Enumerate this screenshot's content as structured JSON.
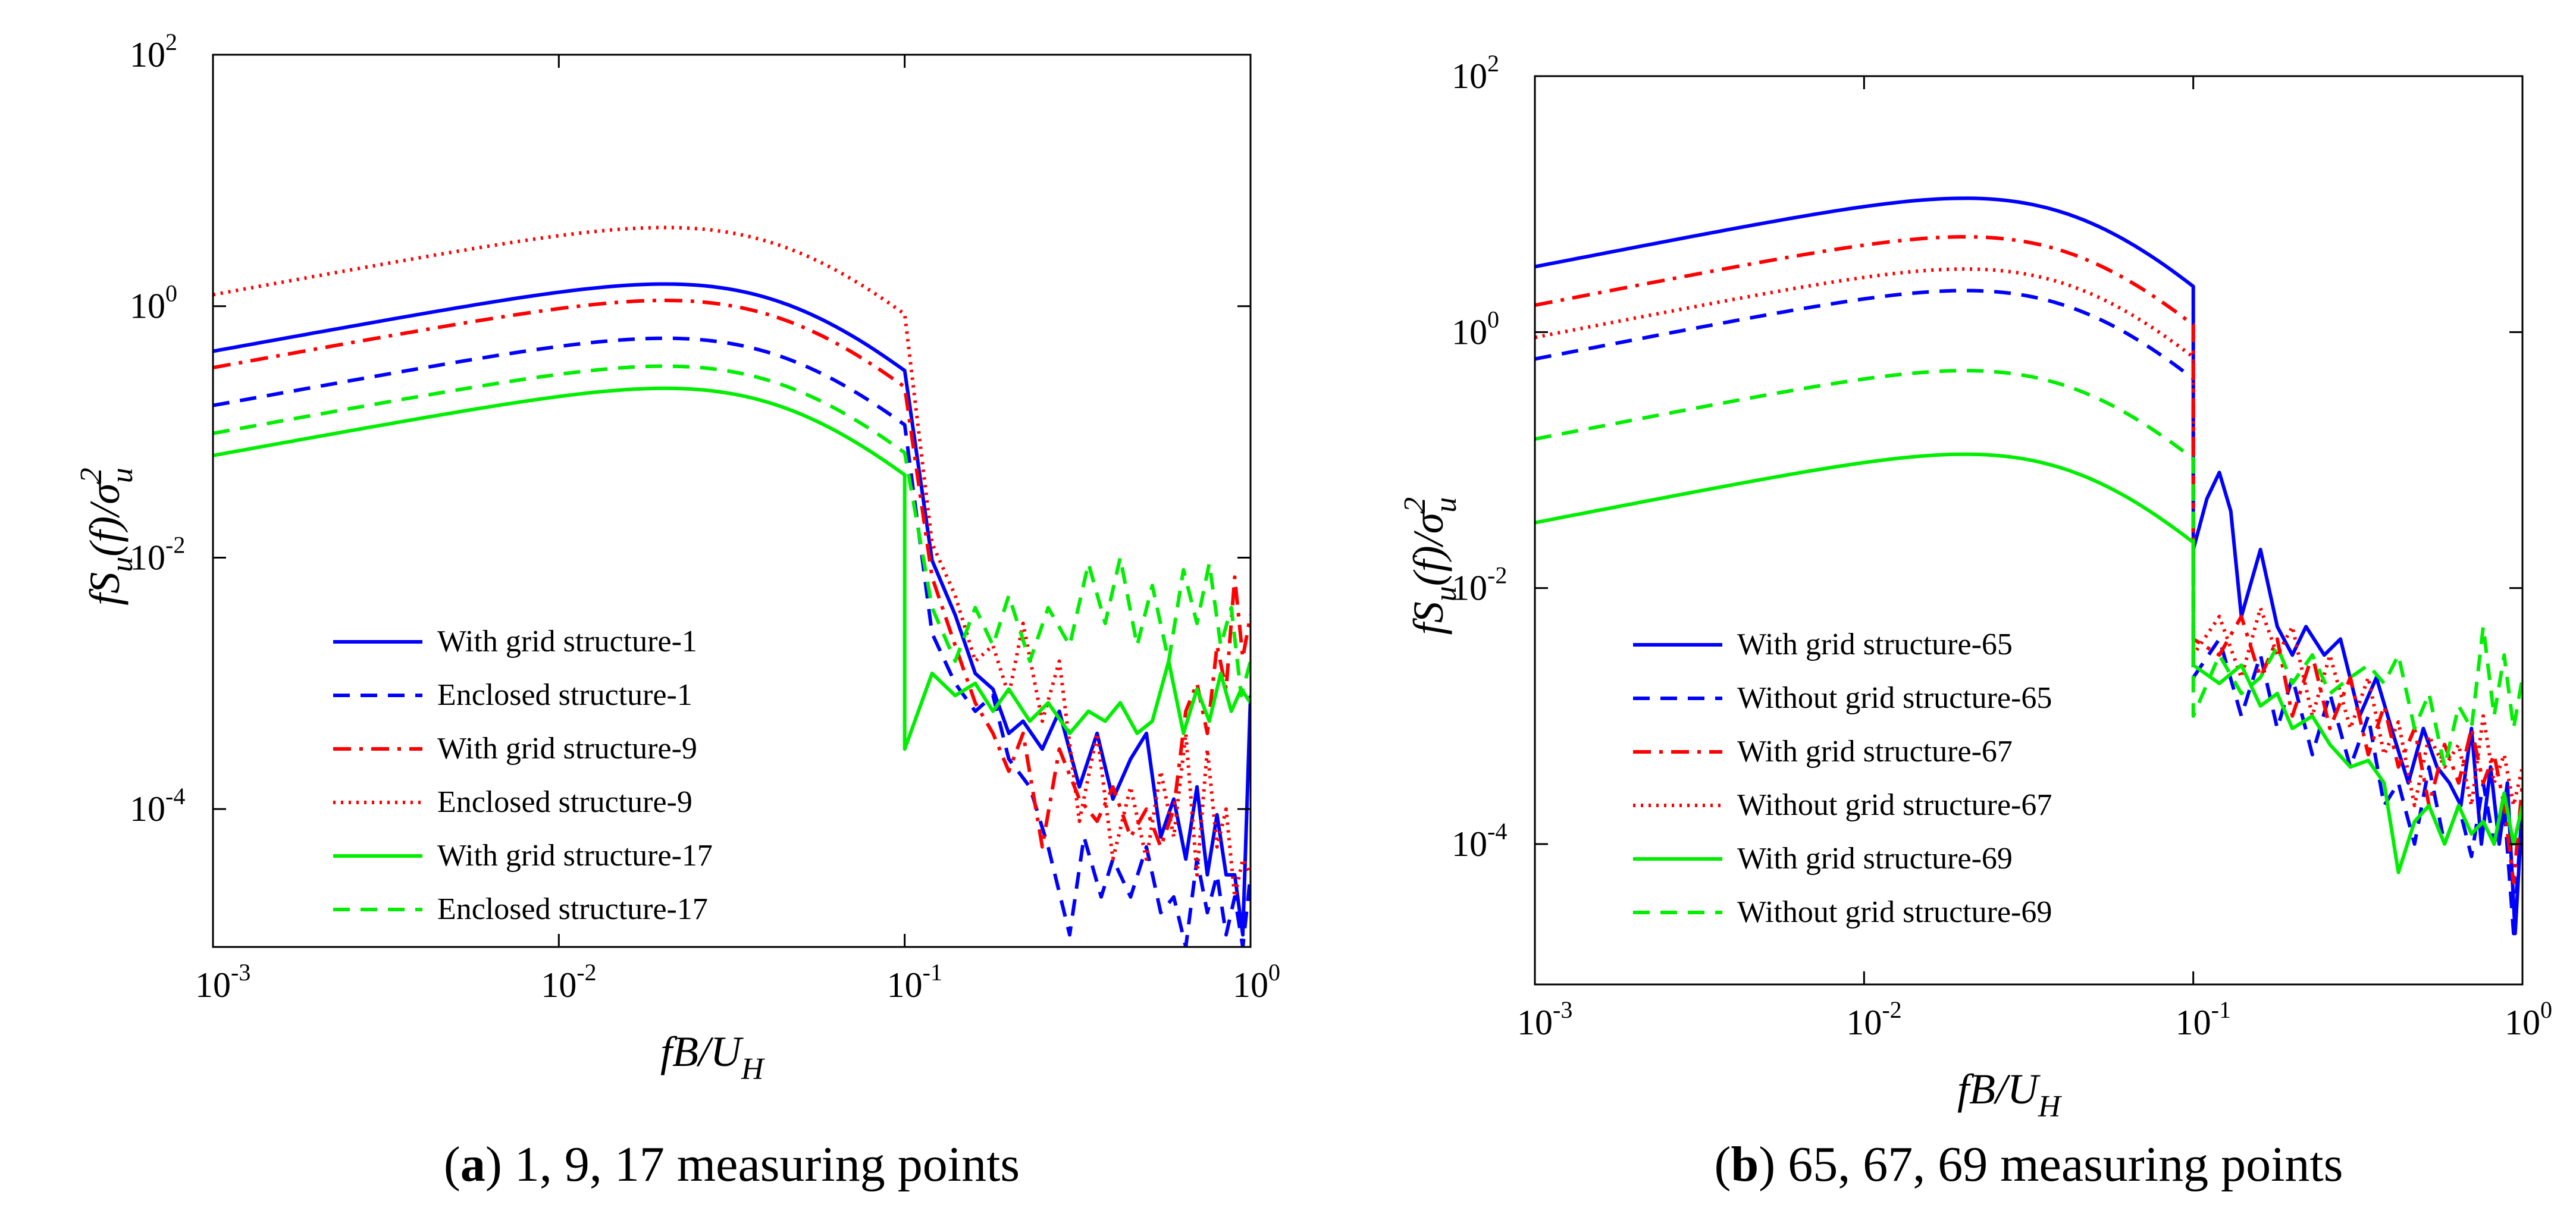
{
  "chart_data": [
    {
      "type": "line",
      "panel_id": "a",
      "caption": {
        "label": "a",
        "open": "(",
        "close": ")",
        "text": " 1, 9, 17 measuring points"
      },
      "xlabel": {
        "main": "fB/U",
        "sub": "H"
      },
      "ylabel": {
        "main": "fS",
        "sub": "u",
        "mid": "(f)/σ",
        "sup": "2",
        "sub2": "u"
      },
      "xscale": "log",
      "yscale": "log",
      "xlim": [
        0.001,
        1
      ],
      "ylim": [
        8e-06,
        100
      ],
      "xticks": [
        {
          "base": "10",
          "exp": "-3",
          "value": 0.001
        },
        {
          "base": "10",
          "exp": "-2",
          "value": 0.01
        },
        {
          "base": "10",
          "exp": "-1",
          "value": 0.1
        },
        {
          "base": "10",
          "exp": "0",
          "value": 1
        }
      ],
      "yticks": [
        {
          "base": "10",
          "exp": "-4",
          "value": 0.0001
        },
        {
          "base": "10",
          "exp": "-2",
          "value": 0.01
        },
        {
          "base": "10",
          "exp": "0",
          "value": 1
        },
        {
          "base": "10",
          "exp": "2",
          "value": 100
        }
      ],
      "legend_position": "lower-left",
      "series": [
        {
          "name": "With grid structure-1",
          "color": "#0000ff",
          "style": "solid",
          "peak": 1.35,
          "x": [
            0.12,
            0.14,
            0.16,
            0.18,
            0.2,
            0.22,
            0.25,
            0.28,
            0.32,
            0.36,
            0.4,
            0.45,
            0.5,
            0.55,
            0.6,
            0.65,
            0.7,
            0.75,
            0.8,
            0.85,
            0.9,
            0.95,
            1.0
          ],
          "y": [
            0.0095,
            0.0035,
            0.0012,
            0.0009,
            0.0004,
            0.0005,
            0.0003,
            0.0006,
            0.00015,
            0.0004,
            0.00012,
            0.00025,
            0.0004,
            6e-05,
            0.00012,
            4e-05,
            0.00015,
            3e-05,
            9e-05,
            3e-05,
            3e-05,
            1e-05,
            0.0008
          ]
        },
        {
          "name": "Enclosed structure-1",
          "color": "#0000ff",
          "style": "dashed",
          "peak": 0.5,
          "x": [
            0.12,
            0.14,
            0.16,
            0.18,
            0.2,
            0.23,
            0.26,
            0.3,
            0.33,
            0.37,
            0.4,
            0.45,
            0.5,
            0.55,
            0.6,
            0.65,
            0.7,
            0.75,
            0.8,
            0.85,
            0.9,
            0.95,
            1.0
          ],
          "y": [
            0.0025,
            0.001,
            0.0006,
            0.0008,
            0.00025,
            0.00015,
            5e-05,
            1e-05,
            6e-05,
            2e-05,
            4e-05,
            2e-05,
            5e-05,
            1.5e-05,
            2e-05,
            8e-06,
            4e-05,
            1.5e-05,
            3e-05,
            1e-05,
            2e-05,
            8e-06,
            3e-05
          ]
        },
        {
          "name": "With grid structure-9",
          "color": "#ff0000",
          "style": "dashdot",
          "peak": 1.0,
          "x": [
            0.12,
            0.14,
            0.16,
            0.18,
            0.2,
            0.22,
            0.25,
            0.28,
            0.32,
            0.36,
            0.4,
            0.45,
            0.5,
            0.55,
            0.6,
            0.65,
            0.7,
            0.75,
            0.8,
            0.85,
            0.9,
            0.95,
            1.0
          ],
          "y": [
            0.007,
            0.002,
            0.0007,
            0.0004,
            0.0002,
            0.0004,
            5e-05,
            0.0003,
            0.00012,
            8e-05,
            0.00015,
            6e-05,
            0.0001,
            5e-05,
            0.0001,
            0.0006,
            0.001,
            0.0004,
            0.002,
            0.0009,
            0.007,
            0.0016,
            0.0035
          ]
        },
        {
          "name": "Enclosed structure-9",
          "color": "#ff0000",
          "style": "dotted",
          "peak": 3.8,
          "x": [
            0.12,
            0.14,
            0.16,
            0.18,
            0.2,
            0.22,
            0.25,
            0.28,
            0.32,
            0.36,
            0.4,
            0.45,
            0.5,
            0.55,
            0.6,
            0.65,
            0.7,
            0.75,
            0.8,
            0.85,
            0.9,
            0.95,
            1.0
          ],
          "y": [
            0.013,
            0.005,
            0.0015,
            0.002,
            0.0008,
            0.003,
            0.0005,
            0.0015,
            8e-05,
            0.0004,
            4e-05,
            0.00015,
            4e-05,
            0.0002,
            6e-05,
            0.0004,
            3e-05,
            0.0003,
            5e-05,
            0.0001,
            2e-05,
            4e-05,
            3e-05
          ]
        },
        {
          "name": "With grid structure-17",
          "color": "#00ee00",
          "style": "solid",
          "peak": 0.2,
          "x": [
            0.1,
            0.12,
            0.14,
            0.16,
            0.18,
            0.2,
            0.23,
            0.26,
            0.3,
            0.34,
            0.38,
            0.42,
            0.47,
            0.52,
            0.58,
            0.64,
            0.7,
            0.76,
            0.82,
            0.88,
            0.94,
            1.0
          ],
          "y": [
            0.0003,
            0.0012,
            0.0008,
            0.001,
            0.0006,
            0.0009,
            0.0005,
            0.0007,
            0.0004,
            0.0006,
            0.0005,
            0.0007,
            0.0004,
            0.0005,
            0.0015,
            0.0004,
            0.0009,
            0.0005,
            0.0012,
            0.0006,
            0.0009,
            0.0007
          ]
        },
        {
          "name": "Enclosed structure-17",
          "color": "#00ee00",
          "style": "dashed",
          "peak": 0.3,
          "x": [
            0.12,
            0.14,
            0.16,
            0.18,
            0.2,
            0.23,
            0.26,
            0.3,
            0.34,
            0.38,
            0.42,
            0.47,
            0.52,
            0.58,
            0.64,
            0.7,
            0.76,
            0.82,
            0.88,
            0.94,
            1.0
          ],
          "y": [
            0.004,
            0.0015,
            0.004,
            0.002,
            0.005,
            0.0015,
            0.004,
            0.002,
            0.009,
            0.003,
            0.01,
            0.002,
            0.006,
            0.0015,
            0.008,
            0.003,
            0.009,
            0.002,
            0.004,
            0.0008,
            0.0015
          ]
        }
      ]
    },
    {
      "type": "line",
      "panel_id": "b",
      "caption": {
        "label": "b",
        "open": "(",
        "close": ")",
        "text": " 65, 67, 69 measuring points"
      },
      "xlabel": {
        "main": "fB/U",
        "sub": "H"
      },
      "ylabel": {
        "main": "fS",
        "sub": "u",
        "mid": "(f)/σ",
        "sup": "2",
        "sub2": "u"
      },
      "xscale": "log",
      "yscale": "log",
      "xlim": [
        0.001,
        1
      ],
      "ylim": [
        8e-06,
        100
      ],
      "xticks": [
        {
          "base": "10",
          "exp": "-3",
          "value": 0.001
        },
        {
          "base": "10",
          "exp": "-2",
          "value": 0.01
        },
        {
          "base": "10",
          "exp": "-1",
          "value": 0.1
        },
        {
          "base": "10",
          "exp": "0",
          "value": 1
        }
      ],
      "yticks": [
        {
          "base": "10",
          "exp": "-4",
          "value": 0.0001
        },
        {
          "base": "10",
          "exp": "-2",
          "value": 0.01
        },
        {
          "base": "10",
          "exp": "0",
          "value": 1
        },
        {
          "base": "10",
          "exp": "2",
          "value": 100
        }
      ],
      "legend_position": "lower-left",
      "series": [
        {
          "name": "With grid structure-65",
          "color": "#0000ff",
          "style": "solid",
          "peak": 10.0,
          "x": [
            0.1,
            0.11,
            0.12,
            0.13,
            0.14,
            0.16,
            0.18,
            0.2,
            0.22,
            0.25,
            0.28,
            0.32,
            0.36,
            0.4,
            0.45,
            0.5,
            0.55,
            0.6,
            0.65,
            0.7,
            0.75,
            0.8,
            0.85,
            0.9,
            0.95,
            1.0
          ],
          "y": [
            0.02,
            0.05,
            0.08,
            0.04,
            0.006,
            0.02,
            0.005,
            0.003,
            0.005,
            0.003,
            0.004,
            0.001,
            0.002,
            0.0008,
            0.0003,
            0.0008,
            0.0004,
            0.0003,
            0.0002,
            0.0008,
            0.0001,
            0.0004,
            0.0001,
            0.0003,
            2e-05,
            0.0002
          ]
        },
        {
          "name": "Without grid structure-65",
          "color": "#0000ff",
          "style": "dashed",
          "peak": 1.9,
          "x": [
            0.1,
            0.12,
            0.14,
            0.16,
            0.18,
            0.2,
            0.23,
            0.26,
            0.3,
            0.34,
            0.38,
            0.42,
            0.47,
            0.52,
            0.58,
            0.64,
            0.7,
            0.76,
            0.82,
            0.88,
            0.94,
            1.0
          ],
          "y": [
            0.002,
            0.004,
            0.001,
            0.003,
            0.0008,
            0.002,
            0.0005,
            0.0015,
            0.0004,
            0.001,
            0.0002,
            0.0003,
            0.0001,
            0.0004,
            0.0001,
            0.0002,
            8e-05,
            0.0003,
            0.0001,
            0.0002,
            2e-05,
            0.0002
          ]
        },
        {
          "name": "With grid structure-67",
          "color": "#ff0000",
          "style": "dashdot",
          "peak": 5.0,
          "x": [
            0.1,
            0.12,
            0.14,
            0.16,
            0.18,
            0.2,
            0.23,
            0.26,
            0.3,
            0.34,
            0.38,
            0.42,
            0.47,
            0.52,
            0.58,
            0.64,
            0.7,
            0.76,
            0.82,
            0.88,
            0.94,
            1.0
          ],
          "y": [
            0.004,
            0.003,
            0.006,
            0.002,
            0.004,
            0.001,
            0.003,
            0.0008,
            0.002,
            0.0005,
            0.0012,
            0.0004,
            0.0008,
            0.0002,
            0.0006,
            0.0003,
            0.0008,
            0.0003,
            0.0005,
            0.0002,
            5e-05,
            0.0003
          ]
        },
        {
          "name": "Without grid structure-67",
          "color": "#ff0000",
          "style": "dotted",
          "peak": 2.8,
          "x": [
            0.1,
            0.12,
            0.14,
            0.16,
            0.18,
            0.2,
            0.23,
            0.26,
            0.3,
            0.34,
            0.38,
            0.42,
            0.47,
            0.52,
            0.58,
            0.64,
            0.7,
            0.76,
            0.82,
            0.88,
            0.94,
            1.0
          ],
          "y": [
            0.003,
            0.006,
            0.002,
            0.007,
            0.003,
            0.005,
            0.001,
            0.003,
            0.0008,
            0.002,
            0.0005,
            0.0009,
            0.0002,
            0.0007,
            0.0004,
            0.0006,
            0.0002,
            0.001,
            0.0003,
            0.0005,
            0.0002,
            0.0004
          ]
        },
        {
          "name": "With grid structure-69",
          "color": "#00ee00",
          "style": "solid",
          "peak": 0.1,
          "x": [
            0.1,
            0.12,
            0.14,
            0.16,
            0.18,
            0.2,
            0.23,
            0.26,
            0.3,
            0.34,
            0.38,
            0.42,
            0.47,
            0.52,
            0.58,
            0.64,
            0.7,
            0.76,
            0.82,
            0.88,
            0.94,
            1.0
          ],
          "y": [
            0.0025,
            0.0018,
            0.0025,
            0.0012,
            0.0015,
            0.0008,
            0.001,
            0.0006,
            0.0004,
            0.00045,
            0.0003,
            6e-05,
            0.00015,
            0.0002,
            0.0001,
            0.0002,
            0.00012,
            0.00015,
            0.0001,
            0.00025,
            0.0001,
            0.0002
          ]
        },
        {
          "name": "Without grid structure-69",
          "color": "#00ee00",
          "style": "dashed",
          "peak": 0.45,
          "x": [
            0.1,
            0.12,
            0.14,
            0.16,
            0.18,
            0.2,
            0.23,
            0.26,
            0.3,
            0.34,
            0.38,
            0.42,
            0.47,
            0.52,
            0.58,
            0.64,
            0.7,
            0.76,
            0.82,
            0.88,
            0.94,
            1.0
          ],
          "y": [
            0.001,
            0.003,
            0.0015,
            0.002,
            0.0035,
            0.0018,
            0.003,
            0.0015,
            0.002,
            0.0025,
            0.0018,
            0.003,
            0.0008,
            0.0015,
            0.0004,
            0.0012,
            0.0008,
            0.005,
            0.001,
            0.003,
            0.0008,
            0.002
          ]
        }
      ]
    }
  ]
}
